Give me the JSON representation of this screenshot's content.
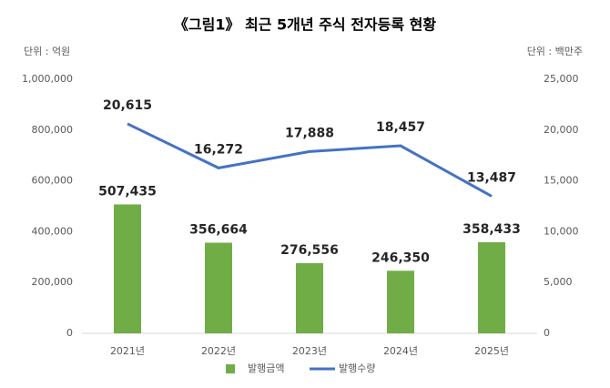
{
  "chart_data": {
    "type": "bar",
    "title": "《그림1》 최근 5개년 주식 전자등록 현황",
    "y_unit": "단위 : 억원",
    "y2_unit": "단위 : 백만주",
    "categories": [
      "2021년",
      "2022년",
      "2023년",
      "2024년",
      "2025년"
    ],
    "series": [
      {
        "name": "발행금액",
        "type": "bar",
        "color": "#70ad47",
        "values": [
          507435,
          356664,
          276556,
          246350,
          358433
        ],
        "value_labels": [
          "507,435",
          "356,664",
          "276,556",
          "246,350",
          "358,433"
        ]
      },
      {
        "name": "발행수량",
        "type": "line",
        "axis": "y2",
        "color": "#4472c4",
        "values": [
          20615,
          16272,
          17888,
          18457,
          13487
        ],
        "value_labels": [
          "20,615",
          "16,272",
          "17,888",
          "18,457",
          "13,487"
        ]
      }
    ],
    "ylim": [
      0,
      1000000
    ],
    "yticks": [
      0,
      {
        "value": 200000,
        "label": "200,000"
      },
      {
        "value": 400000,
        "label": "400,000"
      },
      {
        "value": 600000,
        "label": "600,000"
      },
      {
        "value": 800000,
        "label": "800,000"
      },
      {
        "value": 1000000,
        "label": "1,000,000"
      }
    ],
    "y2lim": [
      0,
      25000
    ],
    "y2ticks": [
      0,
      {
        "value": 5000,
        "label": "5,000"
      },
      {
        "value": 10000,
        "label": "10,000"
      },
      {
        "value": 15000,
        "label": "15,000"
      },
      {
        "value": 20000,
        "label": "20,000"
      },
      {
        "value": 25000,
        "label": "25,000"
      }
    ],
    "grid": false,
    "legend": "bottom"
  }
}
